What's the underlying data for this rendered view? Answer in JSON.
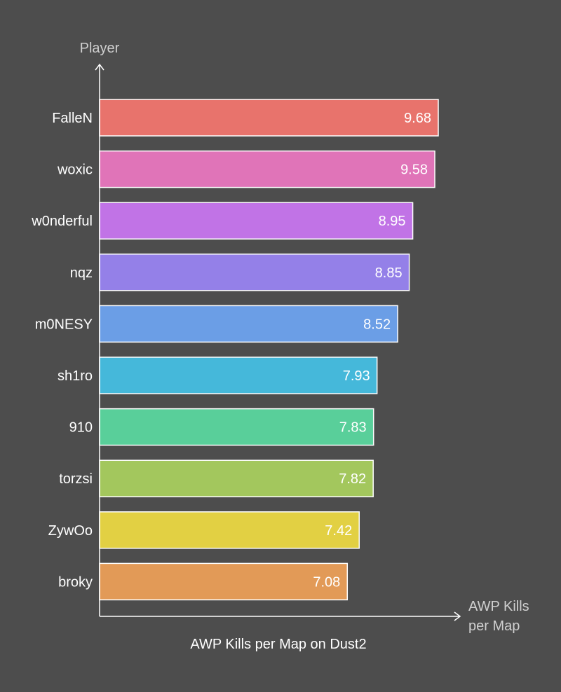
{
  "chart_data": {
    "type": "bar",
    "orientation": "horizontal",
    "title": "AWP Kills per Map on Dust2",
    "ylabel": "Player",
    "xlabel": "AWP Kills per Map",
    "categories": [
      "FalleN",
      "woxic",
      "w0nderful",
      "nqz",
      "m0NESY",
      "sh1ro",
      "910",
      "torzsi",
      "ZywOo",
      "broky"
    ],
    "values": [
      9.68,
      9.58,
      8.95,
      8.85,
      8.52,
      7.93,
      7.83,
      7.82,
      7.42,
      7.08
    ],
    "xlim": [
      0,
      9.68
    ],
    "colors": [
      "#e8736c",
      "#e074b8",
      "#c173e6",
      "#9480e8",
      "#6b9ee6",
      "#45b8da",
      "#59cf9a",
      "#a3c75d",
      "#e2d043",
      "#e29a57"
    ],
    "grid": false,
    "legend": "none"
  }
}
